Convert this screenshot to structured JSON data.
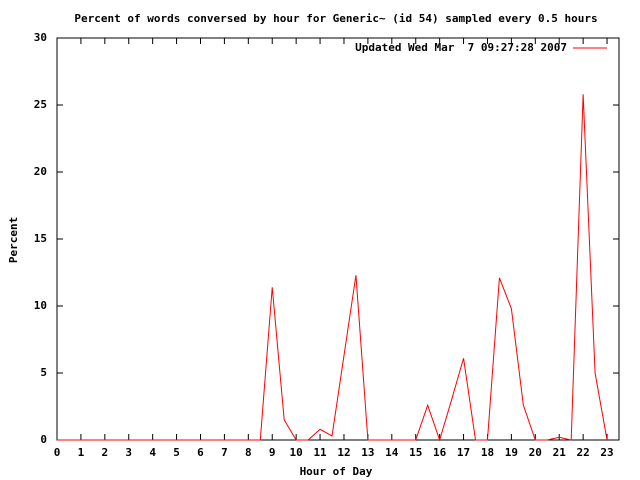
{
  "chart_data": {
    "type": "line",
    "title": "Percent of words conversed by hour for Generic~ (id 54) sampled every 0.5 hours",
    "xlabel": "Hour of Day",
    "ylabel": "Percent",
    "x": [
      0,
      0.5,
      1,
      1.5,
      2,
      2.5,
      3,
      3.5,
      4,
      4.5,
      5,
      5.5,
      6,
      6.5,
      7,
      7.5,
      8,
      8.5,
      9,
      9.5,
      10,
      10.5,
      11,
      11.5,
      12,
      12.5,
      13,
      13.5,
      14,
      14.5,
      15,
      15.5,
      16,
      16.5,
      17,
      17.5,
      18,
      18.5,
      19,
      19.5,
      20,
      20.5,
      21,
      21.5,
      22,
      22.5,
      23
    ],
    "series": [
      {
        "name": "Updated Wed Mar  7 09:27:28 2007",
        "color": "#ff0000",
        "values": [
          0,
          0,
          0,
          0,
          0,
          0,
          0,
          0,
          0,
          0,
          0,
          0,
          0,
          0,
          0,
          0,
          0,
          0,
          11.4,
          1.5,
          0,
          0,
          0.8,
          0.3,
          6.3,
          12.3,
          0,
          0,
          0,
          0,
          0,
          2.6,
          0,
          3,
          6.1,
          0,
          0,
          12.1,
          9.8,
          2.6,
          0,
          0,
          0.2,
          0,
          25.8,
          5,
          0
        ]
      }
    ],
    "xlim": [
      0,
      23.5
    ],
    "ylim": [
      0,
      30
    ],
    "xticks": [
      0,
      1,
      2,
      3,
      4,
      5,
      6,
      7,
      8,
      9,
      10,
      11,
      12,
      13,
      14,
      15,
      16,
      17,
      18,
      19,
      20,
      21,
      22,
      23
    ],
    "yticks": [
      0,
      5,
      10,
      15,
      20,
      25,
      30
    ],
    "grid": false,
    "legend": "upper right"
  }
}
